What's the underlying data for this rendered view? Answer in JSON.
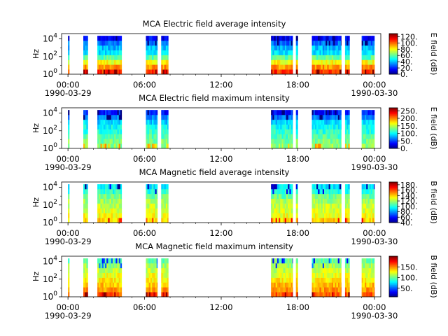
{
  "chart_data": [
    {
      "type": "heatmap",
      "title": "MCA  Electric field average intensity",
      "ylabel": "Hz",
      "colorbar_label": "E field (dB)",
      "colorbar_range": [
        0,
        130
      ],
      "colorbar_ticks": [
        "0.",
        "20.",
        "40.",
        "60.",
        "80.",
        "100.",
        "120."
      ],
      "colorbar_tick_values": [
        0,
        20,
        40,
        60,
        80,
        100,
        120
      ],
      "y_log_range": [
        0,
        4.6
      ],
      "y_ticks": [
        {
          "base": "10",
          "exp": "0",
          "value": 0
        },
        {
          "base": "10",
          "exp": "2",
          "value": 2
        },
        {
          "base": "10",
          "exp": "4",
          "value": 4
        }
      ],
      "x_range_hours": [
        -0.5,
        24.5
      ],
      "x_ticks": [
        {
          "hour": 0,
          "label": "00:00"
        },
        {
          "hour": 6,
          "label": "06:00"
        },
        {
          "hour": 12,
          "label": "12:00"
        },
        {
          "hour": 18,
          "label": "18:00"
        },
        {
          "hour": 24,
          "label": "00:00"
        }
      ],
      "date_labels": [
        {
          "hour": 0,
          "label": "1990-03-29"
        },
        {
          "hour": 24,
          "label": "1990-03-30"
        }
      ],
      "intervals": [
        [
          0.0,
          0.1
        ],
        [
          1.2,
          1.55
        ],
        [
          2.3,
          4.2
        ],
        [
          6.1,
          7.0
        ],
        [
          7.3,
          7.85
        ],
        [
          15.9,
          17.6
        ],
        [
          17.85,
          18.0
        ],
        [
          19.1,
          21.4
        ],
        [
          21.7,
          22.05
        ],
        [
          23.0,
          24.0
        ]
      ],
      "spectrum": {
        "mode": "avg",
        "base": [
          108,
          95,
          80,
          60,
          45,
          40,
          30,
          15
        ],
        "freq_bins": 8
      }
    },
    {
      "type": "heatmap",
      "title": "MCA  Electric field maximum intensity",
      "ylabel": "Hz",
      "colorbar_label": "E field (dB)",
      "colorbar_range": [
        0,
        270
      ],
      "colorbar_ticks": [
        "0.",
        "50.",
        "100.",
        "150.",
        "200.",
        "250."
      ],
      "colorbar_tick_values": [
        0,
        50,
        100,
        150,
        200,
        250
      ],
      "y_log_range": [
        0,
        4.6
      ],
      "y_ticks": [
        {
          "base": "10",
          "exp": "0",
          "value": 0
        },
        {
          "base": "10",
          "exp": "2",
          "value": 2
        },
        {
          "base": "10",
          "exp": "4",
          "value": 4
        }
      ],
      "x_range_hours": [
        -0.5,
        24.5
      ],
      "x_ticks": [
        {
          "hour": 0,
          "label": "00:00"
        },
        {
          "hour": 6,
          "label": "06:00"
        },
        {
          "hour": 12,
          "label": "12:00"
        },
        {
          "hour": 18,
          "label": "18:00"
        },
        {
          "hour": 24,
          "label": "00:00"
        }
      ],
      "date_labels": [
        {
          "hour": 0,
          "label": "1990-03-29"
        },
        {
          "hour": 24,
          "label": "1990-03-30"
        }
      ],
      "intervals": [
        [
          0.0,
          0.1
        ],
        [
          1.2,
          1.55
        ],
        [
          2.3,
          4.2
        ],
        [
          6.1,
          7.0
        ],
        [
          7.3,
          7.85
        ],
        [
          15.9,
          17.6
        ],
        [
          17.85,
          18.0
        ],
        [
          19.1,
          21.4
        ],
        [
          21.7,
          22.05
        ],
        [
          23.0,
          24.0
        ]
      ],
      "spectrum": {
        "mode": "max",
        "base": [
          140,
          132,
          122,
          112,
          102,
          90,
          70,
          40
        ],
        "freq_bins": 8
      }
    },
    {
      "type": "heatmap",
      "title": "MCA  Magnetic field average intensity",
      "ylabel": "Hz",
      "colorbar_label": "B field (dB)",
      "colorbar_range": [
        40,
        190
      ],
      "colorbar_ticks": [
        "40.",
        "60.",
        "80.",
        "100.",
        "120.",
        "140.",
        "160.",
        "180."
      ],
      "colorbar_tick_values": [
        40,
        60,
        80,
        100,
        120,
        140,
        160,
        180
      ],
      "y_log_range": [
        0,
        4.6
      ],
      "y_ticks": [
        {
          "base": "10",
          "exp": "0",
          "value": 0
        },
        {
          "base": "10",
          "exp": "2",
          "value": 2
        },
        {
          "base": "10",
          "exp": "4",
          "value": 4
        }
      ],
      "x_range_hours": [
        -0.5,
        24.5
      ],
      "x_ticks": [
        {
          "hour": 0,
          "label": "00:00"
        },
        {
          "hour": 6,
          "label": "06:00"
        },
        {
          "hour": 12,
          "label": "12:00"
        },
        {
          "hour": 18,
          "label": "18:00"
        },
        {
          "hour": 24,
          "label": "00:00"
        }
      ],
      "date_labels": [
        {
          "hour": 0,
          "label": "1990-03-29"
        },
        {
          "hour": 24,
          "label": "1990-03-30"
        }
      ],
      "intervals": [
        [
          0.0,
          0.1
        ],
        [
          1.2,
          1.55
        ],
        [
          2.3,
          4.2
        ],
        [
          6.1,
          7.0
        ],
        [
          7.3,
          7.85
        ],
        [
          15.9,
          17.6
        ],
        [
          17.85,
          18.0
        ],
        [
          19.1,
          21.4
        ],
        [
          21.7,
          22.05
        ],
        [
          23.0,
          24.0
        ]
      ],
      "spectrum": {
        "mode": "mag",
        "base": [
          140,
          132,
          128,
          125,
          120,
          112,
          102,
          94
        ],
        "freq_bins": 8
      }
    },
    {
      "type": "heatmap",
      "title": "MCA  Magnetic field maximum intensity",
      "ylabel": "Hz",
      "colorbar_label": "B field (dB)",
      "colorbar_range": [
        10,
        200
      ],
      "colorbar_ticks": [
        "50.",
        "100.",
        "150."
      ],
      "colorbar_tick_values": [
        50,
        100,
        150
      ],
      "y_log_range": [
        0,
        4.6
      ],
      "y_ticks": [
        {
          "base": "10",
          "exp": "0",
          "value": 0
        },
        {
          "base": "10",
          "exp": "2",
          "value": 2
        },
        {
          "base": "10",
          "exp": "4",
          "value": 4
        }
      ],
      "x_range_hours": [
        -0.5,
        24.5
      ],
      "x_ticks": [
        {
          "hour": 0,
          "label": "00:00"
        },
        {
          "hour": 6,
          "label": "06:00"
        },
        {
          "hour": 12,
          "label": "12:00"
        },
        {
          "hour": 18,
          "label": "18:00"
        },
        {
          "hour": 24,
          "label": "00:00"
        }
      ],
      "date_labels": [
        {
          "hour": 0,
          "label": "1990-03-29"
        },
        {
          "hour": 24,
          "label": "1990-03-30"
        }
      ],
      "intervals": [
        [
          0.0,
          0.1
        ],
        [
          1.2,
          1.55
        ],
        [
          2.3,
          4.2
        ],
        [
          6.1,
          7.0
        ],
        [
          7.3,
          7.85
        ],
        [
          15.9,
          17.6
        ],
        [
          17.85,
          18.0
        ],
        [
          19.1,
          21.4
        ],
        [
          21.7,
          22.05
        ],
        [
          23.0,
          24.0
        ]
      ],
      "spectrum": {
        "mode": "magmax",
        "base": [
          160,
          148,
          140,
          132,
          125,
          118,
          110,
          100
        ],
        "freq_bins": 8
      }
    }
  ]
}
